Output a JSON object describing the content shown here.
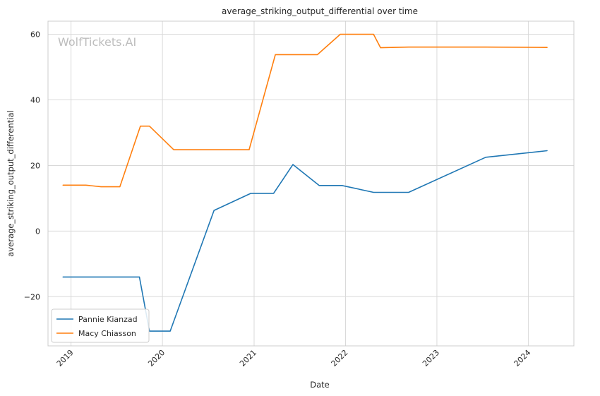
{
  "chart_data": {
    "type": "line",
    "title": "average_striking_output_differential over time",
    "xlabel": "Date",
    "ylabel": "average_striking_output_differential",
    "watermark": "WolfTickets.AI",
    "x_ticks": [
      "2019",
      "2020",
      "2021",
      "2022",
      "2023",
      "2024"
    ],
    "y_ticks": [
      "60",
      "40",
      "20",
      "0",
      "−20"
    ],
    "y_tick_values": [
      60,
      40,
      20,
      0,
      -20
    ],
    "ylim": [
      -35,
      64
    ],
    "xlim": [
      "2018-10-01",
      "2024-07-01"
    ],
    "grid": true,
    "legend_position": "lower-left",
    "colors": {
      "Pannie Kianzad": "#1f77b4",
      "Macy Chiasson": "#ff7f0e"
    },
    "series": [
      {
        "name": "Pannie Kianzad",
        "points": [
          [
            "2018-11-30",
            -14
          ],
          [
            "2019-10-01",
            -14
          ],
          [
            "2019-11-10",
            -30.5
          ],
          [
            "2020-02-01",
            -30.5
          ],
          [
            "2020-07-25",
            6.3
          ],
          [
            "2020-12-19",
            11.5
          ],
          [
            "2021-03-20",
            11.5
          ],
          [
            "2021-06-05",
            20.3
          ],
          [
            "2021-09-18",
            13.9
          ],
          [
            "2021-12-18",
            13.9
          ],
          [
            "2022-04-23",
            11.8
          ],
          [
            "2022-09-10",
            11.8
          ],
          [
            "2023-07-15",
            22.5
          ],
          [
            "2024-03-16",
            24.5
          ]
        ]
      },
      {
        "name": "Macy Chiasson",
        "points": [
          [
            "2018-11-30",
            14
          ],
          [
            "2019-03-01",
            14
          ],
          [
            "2019-05-01",
            13.5
          ],
          [
            "2019-07-15",
            13.5
          ],
          [
            "2019-10-05",
            32
          ],
          [
            "2019-11-10",
            32
          ],
          [
            "2020-02-15",
            24.8
          ],
          [
            "2020-12-12",
            24.8
          ],
          [
            "2021-03-27",
            53.8
          ],
          [
            "2021-09-11",
            53.8
          ],
          [
            "2021-12-11",
            60
          ],
          [
            "2022-04-23",
            60
          ],
          [
            "2022-05-21",
            55.9
          ],
          [
            "2022-09-10",
            56.1
          ],
          [
            "2023-07-15",
            56.1
          ],
          [
            "2024-03-16",
            56
          ]
        ]
      }
    ]
  }
}
